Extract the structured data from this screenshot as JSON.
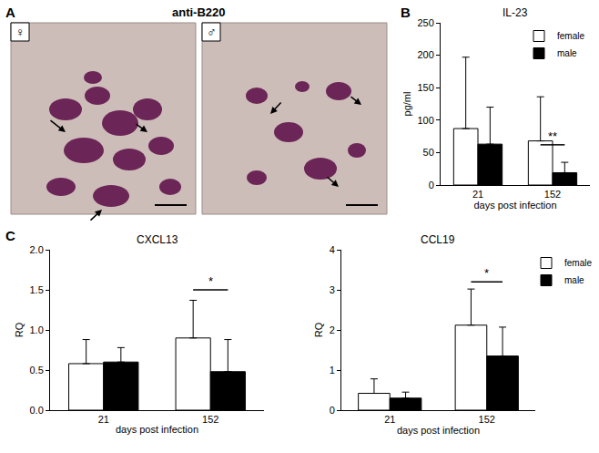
{
  "panel_labels": [
    "A",
    "B",
    "C"
  ],
  "panel_a": {
    "title": "anti-B220",
    "images": [
      {
        "label": "♀"
      },
      {
        "label": "♂"
      }
    ]
  },
  "chart_data": [
    {
      "type": "bar",
      "title": "IL-23",
      "x_label": "days post infection",
      "y_label": "pg/ml",
      "categories": [
        "21",
        "152"
      ],
      "series": [
        {
          "name": "female",
          "color": "#ffffff",
          "values": [
            87,
            68
          ],
          "errors": [
            110,
            68
          ]
        },
        {
          "name": "male",
          "color": "#000000",
          "values": [
            63,
            19
          ],
          "errors": [
            57,
            16
          ]
        }
      ],
      "ylim": [
        0,
        250
      ],
      "yticks": [
        0,
        50,
        100,
        150,
        200,
        250
      ],
      "grid": false,
      "legend": "top right",
      "significance": [
        {
          "category": "152",
          "label": "**",
          "y": 62
        }
      ]
    },
    {
      "type": "bar",
      "title": "CXCL13",
      "x_label": "days post infection",
      "y_label": "RQ",
      "categories": [
        "21",
        "152"
      ],
      "series": [
        {
          "name": "female",
          "color": "#ffffff",
          "values": [
            0.58,
            0.9
          ],
          "errors": [
            0.3,
            0.47
          ]
        },
        {
          "name": "male",
          "color": "#000000",
          "values": [
            0.6,
            0.48
          ],
          "errors": [
            0.18,
            0.4
          ]
        }
      ],
      "ylim": [
        0,
        2
      ],
      "yticks": [
        {
          "value": 0,
          "label": "0.0"
        },
        0.5,
        {
          "value": 1,
          "label": "1.0"
        },
        1.5,
        {
          "value": 2,
          "label": "2.0"
        }
      ],
      "grid": false,
      "significance": [
        {
          "category": "152",
          "label": "*",
          "y": 1.5
        }
      ]
    },
    {
      "type": "bar",
      "title": "CCL19",
      "x_label": "days post infection",
      "y_label": "RQ",
      "categories": [
        "21",
        "152"
      ],
      "series": [
        {
          "name": "female",
          "color": "#ffffff",
          "values": [
            0.42,
            2.12
          ],
          "errors": [
            0.36,
            0.9
          ]
        },
        {
          "name": "male",
          "color": "#000000",
          "values": [
            0.3,
            1.35
          ],
          "errors": [
            0.15,
            0.72
          ]
        }
      ],
      "ylim": [
        0,
        4
      ],
      "yticks": [
        0,
        1,
        2,
        3,
        4
      ],
      "grid": false,
      "legend": "top right",
      "significance": [
        {
          "category": "152",
          "label": "*",
          "y": 3.2
        }
      ]
    }
  ]
}
